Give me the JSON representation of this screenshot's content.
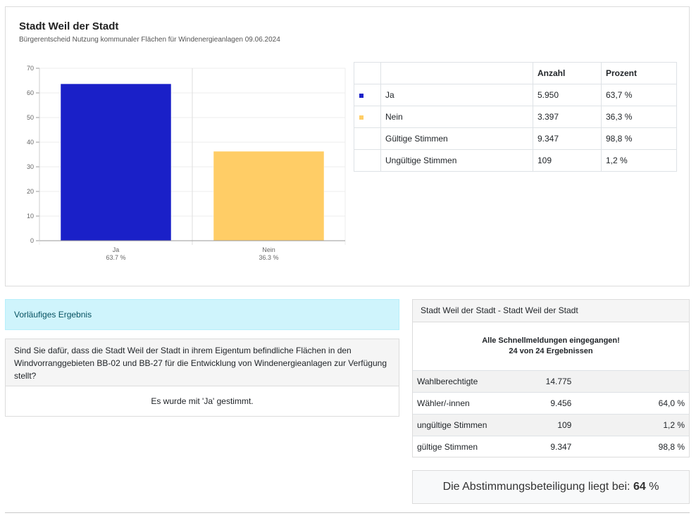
{
  "header": {
    "title": "Stadt Weil der Stadt",
    "subtitle": "Bürgerentscheid Nutzung kommunaler Flächen für Windenergieanlagen 09.06.2024"
  },
  "chart_data": {
    "type": "bar",
    "categories": [
      "Ja",
      "Nein"
    ],
    "category_sublabels": [
      "63.7 %",
      "36.3 %"
    ],
    "values": [
      63.7,
      36.3
    ],
    "colors": [
      "#1a20c8",
      "#ffcd66"
    ],
    "ylim": [
      0,
      70
    ],
    "yticks": [
      0,
      10,
      20,
      30,
      40,
      50,
      60,
      70
    ],
    "grid": true,
    "title": "",
    "xlabel": "",
    "ylabel": ""
  },
  "results_table": {
    "headers": [
      "",
      "",
      "Anzahl",
      "Prozent"
    ],
    "rows": [
      {
        "swatch": "#1a20c8",
        "label": "Ja",
        "count": "5.950",
        "percent": "63,7 %"
      },
      {
        "swatch": "#ffcd66",
        "label": "Nein",
        "count": "3.397",
        "percent": "36,3 %"
      },
      {
        "swatch": "",
        "label": "Gültige Stimmen",
        "count": "9.347",
        "percent": "98,8 %"
      },
      {
        "swatch": "",
        "label": "Ungültige Stimmen",
        "count": "109",
        "percent": "1,2 %"
      }
    ]
  },
  "info": {
    "status_label": "Vorläufiges Ergebnis",
    "question": "Sind Sie dafür, dass die Stadt Weil der Stadt in ihrem Eigentum befindliche Flächen in den Windvorranggebieten BB-02 und BB-27 für die Entwicklung von Windenergieanlagen zur Verfügung stellt?",
    "answer": "Es wurde mit 'Ja' gestimmt."
  },
  "district": {
    "header": "Stadt Weil der Stadt - Stadt Weil der Stadt",
    "status_line1": "Alle Schnellmeldungen eingegangen!",
    "status_line2": "24 von 24 Ergebnissen",
    "rows": [
      {
        "label": "Wahlberechtigte",
        "value": "14.775",
        "percent": ""
      },
      {
        "label": "Wähler/-innen",
        "value": "9.456",
        "percent": "64,0 %"
      },
      {
        "label": "ungültige Stimmen",
        "value": "109",
        "percent": "1,2 %"
      },
      {
        "label": "gültige Stimmen",
        "value": "9.347",
        "percent": "98,8 %"
      }
    ]
  },
  "turnout": {
    "prefix": "Die Abstimmungsbeteiligung liegt bei:",
    "value": "64",
    "suffix": "%"
  },
  "accent_color": "#1a20c8"
}
